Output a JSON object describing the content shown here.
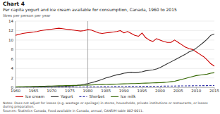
{
  "chart_data": {
    "type": "line",
    "title": "Chart 4",
    "subtitle": "Per capita yogurt and ice cream available for consumption, Canada, 1960 to 2015",
    "y_label": "litres per person per year",
    "notes": [
      "Notes: Does not adjust for losses (e.g. wastage or spoilage) in stores, households, private institutions or restaurants, or losses during preparation.",
      "Sources: Statistics Canada, Food available in Canada, annual, CANSIM table 002-0011."
    ],
    "x": [
      1960,
      1961,
      1962,
      1963,
      1964,
      1965,
      1966,
      1967,
      1968,
      1969,
      1970,
      1971,
      1972,
      1973,
      1974,
      1975,
      1976,
      1977,
      1978,
      1979,
      1980,
      1981,
      1982,
      1983,
      1984,
      1985,
      1986,
      1987,
      1988,
      1989,
      1990,
      1991,
      1992,
      1993,
      1994,
      1995,
      1996,
      1997,
      1998,
      1999,
      2000,
      2001,
      2002,
      2003,
      2004,
      2005,
      2006,
      2007,
      2008,
      2009,
      2010,
      2011,
      2012,
      2013,
      2014,
      2015
    ],
    "series": [
      {
        "name": "Ice cream",
        "color": "#cc0000",
        "line_style": "solid",
        "values": [
          11.0,
          11.2,
          11.4,
          11.5,
          11.6,
          11.7,
          11.8,
          12.0,
          12.1,
          12.2,
          12.3,
          12.4,
          12.5,
          12.4,
          12.3,
          12.2,
          12.1,
          12.0,
          11.9,
          12.0,
          12.2,
          12.1,
          11.8,
          11.5,
          11.4,
          11.5,
          11.6,
          11.7,
          11.8,
          12.0,
          11.5,
          11.8,
          11.4,
          11.0,
          10.8,
          11.5,
          10.5,
          10.0,
          9.7,
          10.3,
          10.0,
          9.7,
          9.5,
          9.5,
          10.0,
          9.5,
          9.0,
          8.5,
          8.2,
          8.0,
          7.5,
          7.0,
          6.5,
          5.8,
          5.0,
          4.5
        ]
      },
      {
        "name": "Yogurt",
        "color": "#333333",
        "line_style": "solid",
        "values": [
          0.05,
          0.06,
          0.06,
          0.07,
          0.07,
          0.08,
          0.09,
          0.1,
          0.11,
          0.12,
          0.14,
          0.16,
          0.19,
          0.22,
          0.26,
          0.3,
          0.35,
          0.42,
          0.52,
          0.65,
          0.8,
          1.0,
          1.2,
          1.45,
          1.7,
          2.0,
          2.2,
          2.45,
          2.65,
          2.8,
          3.0,
          3.1,
          3.2,
          3.1,
          3.2,
          3.3,
          3.5,
          3.6,
          3.7,
          3.9,
          4.2,
          4.6,
          5.0,
          5.4,
          5.8,
          6.2,
          6.6,
          7.0,
          7.5,
          7.8,
          8.3,
          8.9,
          9.5,
          10.2,
          11.0,
          11.3
        ]
      },
      {
        "name": "Sherbet",
        "color": "#3333aa",
        "line_style": "dashed",
        "values": [
          0.02,
          0.02,
          0.02,
          0.02,
          0.02,
          0.02,
          0.03,
          0.03,
          0.03,
          0.03,
          0.04,
          0.04,
          0.05,
          0.05,
          0.05,
          0.05,
          0.06,
          0.06,
          0.07,
          0.07,
          0.08,
          0.09,
          0.1,
          0.11,
          0.12,
          0.13,
          0.14,
          0.15,
          0.16,
          0.17,
          0.18,
          0.19,
          0.2,
          0.21,
          0.22,
          0.23,
          0.24,
          0.24,
          0.25,
          0.25,
          0.26,
          0.27,
          0.28,
          0.29,
          0.3,
          0.31,
          0.32,
          0.33,
          0.34,
          0.35,
          0.36,
          0.37,
          0.38,
          0.39,
          0.4,
          0.41
        ]
      },
      {
        "name": "Ice milk",
        "color": "#336600",
        "line_style": "solid",
        "values": [
          0.1,
          0.12,
          0.14,
          0.16,
          0.18,
          0.2,
          0.22,
          0.24,
          0.26,
          0.28,
          0.3,
          0.32,
          0.34,
          0.36,
          0.38,
          0.4,
          0.42,
          0.44,
          0.46,
          0.48,
          0.5,
          0.52,
          0.55,
          0.58,
          0.6,
          0.62,
          0.65,
          0.68,
          0.7,
          0.72,
          0.75,
          0.78,
          0.8,
          0.82,
          0.85,
          0.88,
          0.9,
          0.92,
          0.95,
          0.98,
          1.0,
          1.05,
          1.1,
          1.2,
          1.3,
          1.5,
          1.7,
          1.9,
          2.1,
          2.3,
          2.5,
          2.6,
          2.7,
          2.8,
          3.0,
          3.1
        ]
      }
    ],
    "vertical_line": 1980,
    "xlim": [
      1960,
      2015
    ],
    "xticks": [
      1960,
      1965,
      1970,
      1975,
      1980,
      1985,
      1990,
      1995,
      2000,
      2005,
      2010,
      2015
    ],
    "ylim": [
      0,
      14
    ],
    "yticks": [
      0,
      2,
      4,
      6,
      8,
      10,
      12,
      14
    ],
    "grid": true,
    "legend": "bottom"
  }
}
